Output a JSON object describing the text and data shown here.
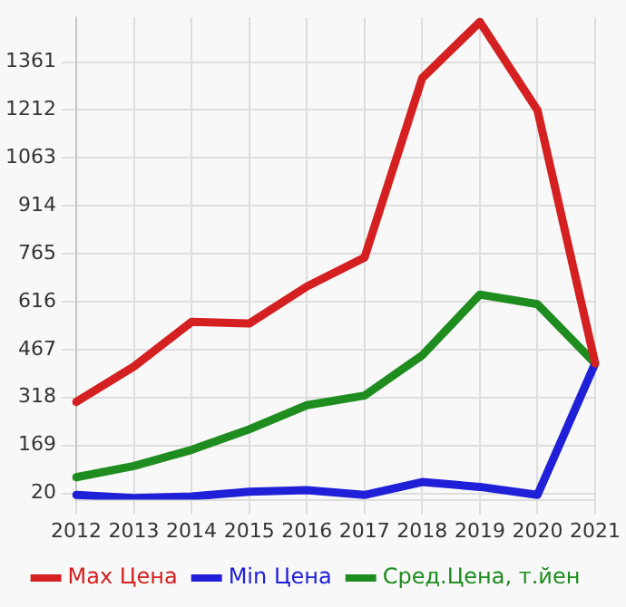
{
  "chart_data": {
    "type": "line",
    "categories": [
      "2012",
      "2013",
      "2014",
      "2015",
      "2016",
      "2017",
      "2018",
      "2019",
      "2020",
      "2021"
    ],
    "series": [
      {
        "name": "Max Цена",
        "color": "#d42020",
        "values": [
          304,
          414,
          553,
          548,
          663,
          753,
          1311,
          1486,
          1211,
          424
        ]
      },
      {
        "name": "Min Цена",
        "color": "#2020d8",
        "values": [
          15,
          5,
          10,
          25,
          30,
          15,
          55,
          40,
          15,
          424
        ]
      },
      {
        "name": "Сред.Цена, т.йен",
        "color": "#1e8c1e",
        "values": [
          70,
          105,
          155,
          219,
          294,
          324,
          449,
          638,
          608,
          424
        ]
      }
    ],
    "ylim": [
      0,
      1500
    ],
    "yticks": [
      20,
      169,
      318,
      467,
      616,
      765,
      914,
      1063,
      1212,
      1361
    ],
    "grid": true,
    "legend": "bottom",
    "marker": "none",
    "line_style": "solid"
  }
}
